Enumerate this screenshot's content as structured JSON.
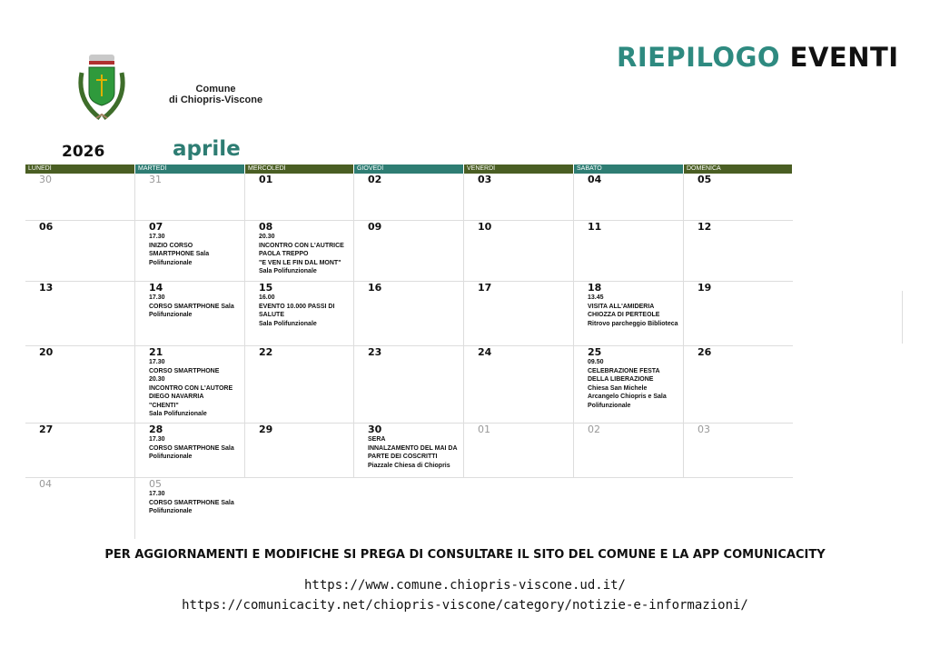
{
  "header": {
    "title_part1": "RIEPILOGO",
    "title_part2": "EVENTI",
    "org_line1": "Comune",
    "org_line2": "di Chiopris-Viscone",
    "logo": "coat-of-arms"
  },
  "calendar": {
    "year": "2026",
    "month": "aprile",
    "colors": {
      "header_dark": "#4a5e23",
      "header_teal": "#2e7d73",
      "month": "#2e7d73"
    },
    "weekdays": [
      "LUNEDÌ",
      "MARTEDÌ",
      "MERCOLEDÌ",
      "GIOVEDÌ",
      "VENERDÌ",
      "SABATO",
      "DOMENICA"
    ],
    "weeks": [
      [
        {
          "day": "30",
          "muted": true,
          "events": ""
        },
        {
          "day": "31",
          "muted": true,
          "events": ""
        },
        {
          "day": "01",
          "events": ""
        },
        {
          "day": "02",
          "events": ""
        },
        {
          "day": "03",
          "events": ""
        },
        {
          "day": "04",
          "events": ""
        },
        {
          "day": "05",
          "events": ""
        }
      ],
      [
        {
          "day": "06",
          "events": ""
        },
        {
          "day": "07",
          "events": "17.30\nINIZIO CORSO\nSMARTPHONE Sala\nPolifunzionale"
        },
        {
          "day": "08",
          "events": "20.30\nINCONTRO CON L'AUTRICE\nPAOLA TREPPO\n\"E VEN LE FIN DAL MONT\"\nSala Polifunzionale"
        },
        {
          "day": "09",
          "events": ""
        },
        {
          "day": "10",
          "events": ""
        },
        {
          "day": "11",
          "events": ""
        },
        {
          "day": "12",
          "events": ""
        }
      ],
      [
        {
          "day": "13",
          "events": ""
        },
        {
          "day": "14",
          "events": "17.30\nCORSO SMARTPHONE Sala\nPolifunzionale"
        },
        {
          "day": "15",
          "events": "16.00\nEVENTO 10.000 PASSI DI\nSALUTE\nSala Polifunzionale"
        },
        {
          "day": "16",
          "events": ""
        },
        {
          "day": "17",
          "events": ""
        },
        {
          "day": "18",
          "events": "13.45\nVISITA ALL'AMIDERIA\nCHIOZZA DI PERTEOLE\nRitrovo parcheggio Biblioteca"
        },
        {
          "day": "19",
          "events": ""
        }
      ],
      [
        {
          "day": "20",
          "events": ""
        },
        {
          "day": "21",
          "events": "17.30\nCORSO SMARTPHONE\n20.30\nINCONTRO CON L'AUTORE\nDIEGO NAVARRIA\n\"CHENTI\"\nSala Polifunzionale"
        },
        {
          "day": "22",
          "events": ""
        },
        {
          "day": "23",
          "events": ""
        },
        {
          "day": "24",
          "events": ""
        },
        {
          "day": "25",
          "events": "09.50\nCELEBRAZIONE FESTA\nDELLA LIBERAZIONE\nChiesa San Michele\nArcangelo Chiopris  e Sala\nPolifunzionale"
        },
        {
          "day": "26",
          "events": ""
        }
      ],
      [
        {
          "day": "27",
          "events": ""
        },
        {
          "day": "28",
          "events": "17.30\nCORSO SMARTPHONE Sala\nPolifunzionale"
        },
        {
          "day": "29",
          "events": ""
        },
        {
          "day": "30",
          "events": "SERA\nINNALZAMENTO DEL MAI DA\nPARTE DEI COSCRITTI\nPiazzale Chiesa di Chiopris"
        },
        {
          "day": "01",
          "muted": true,
          "events": ""
        },
        {
          "day": "02",
          "muted": true,
          "events": ""
        },
        {
          "day": "03",
          "muted": true,
          "events": ""
        }
      ],
      [
        {
          "day": "04",
          "muted": true,
          "events": ""
        },
        {
          "day": "05",
          "muted": true,
          "events": "17.30\nCORSO SMARTPHONE Sala\nPolifunzionale"
        }
      ]
    ]
  },
  "footer": {
    "note": "PER AGGIORNAMENTI E MODIFICHE SI PREGA DI CONSULTARE IL SITO DEL COMUNE E LA APP COMUNICACITY",
    "url1": "https://www.comune.chiopris-viscone.ud.it/",
    "url2": "https://comunicacity.net/chiopris-viscone/category/notizie-e-informazioni/"
  }
}
